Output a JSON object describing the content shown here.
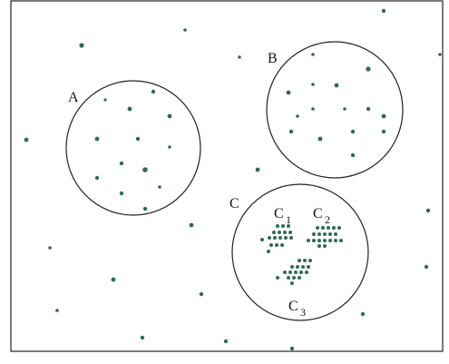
{
  "colors": {
    "dot": "#2e6b57",
    "stroke": "#222222",
    "background": "#ffffff"
  },
  "labels": {
    "a": "A",
    "b": "B",
    "c": "C",
    "c1_main": "C",
    "c1_sub": "1",
    "c2_main": "C",
    "c2_sub": "2",
    "c3_main": "C",
    "c3_sub": "3"
  }
}
